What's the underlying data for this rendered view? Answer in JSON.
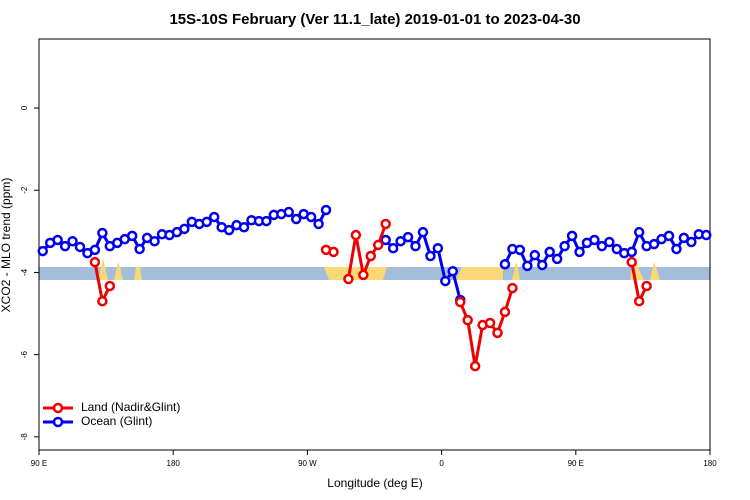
{
  "chart_data": {
    "type": "line",
    "title": "15S-10S February (Ver 11.1_late)   2019-01-01 to 2023-04-30",
    "x_label": "Longitude (deg E)",
    "y_label": "XCO2 - MLO trend (ppm)",
    "x": [
      92.5,
      97.5,
      102.5,
      107.5,
      112.5,
      117.5,
      122.5,
      127.5,
      132.5,
      137.5,
      142.5,
      147.5,
      152.5,
      157.5,
      162.5,
      167.5,
      172.5,
      177.5,
      182.5,
      187.5,
      192.5,
      197.5,
      202.5,
      207.5,
      212.5,
      217.5,
      222.5,
      227.5,
      232.5,
      237.5,
      242.5,
      247.5,
      252.5,
      257.5,
      262.5,
      267.5,
      272.5,
      277.5,
      282.5,
      287.5,
      292.5,
      297.5,
      302.5,
      307.5,
      312.5,
      317.5,
      322.5,
      327.5,
      332.5,
      337.5,
      342.5,
      347.5,
      352.5,
      357.5,
      362.5,
      367.5,
      372.5,
      377.5,
      382.5,
      387.5,
      392.5,
      397.5,
      402.5,
      407.5,
      412.5,
      417.5,
      422.5,
      427.5,
      432.5,
      437.5,
      442.5,
      447.5,
      452.5,
      457.5,
      462.5,
      467.5,
      472.5,
      477.5,
      482.5,
      487.5,
      492.5,
      497.5,
      502.5,
      507.5,
      512.5,
      517.5,
      522.5,
      527.5,
      532.5,
      537.5
    ],
    "series": [
      {
        "name": "Land (Nadir&Glint)",
        "color": "#ee0000",
        "values": [
          null,
          null,
          null,
          null,
          null,
          null,
          null,
          -3.75,
          -4.7,
          -4.33,
          null,
          null,
          null,
          null,
          null,
          null,
          null,
          null,
          null,
          null,
          null,
          null,
          null,
          null,
          null,
          null,
          null,
          null,
          null,
          null,
          null,
          null,
          null,
          null,
          null,
          null,
          null,
          null,
          -3.45,
          -3.5,
          null,
          -4.16,
          -3.09,
          -4.06,
          -3.6,
          -3.33,
          -2.82,
          null,
          null,
          null,
          null,
          null,
          null,
          null,
          null,
          null,
          -4.72,
          -5.16,
          -6.28,
          -5.28,
          -5.23,
          -5.47,
          -4.96,
          -4.38,
          null,
          null,
          null,
          null,
          null,
          null,
          null,
          null,
          null,
          null,
          null,
          null,
          null,
          null,
          null,
          -3.75,
          -4.7,
          -4.33,
          null,
          null,
          null,
          null,
          null,
          null,
          null,
          null
        ]
      },
      {
        "name": "Ocean (Glint)",
        "color": "#0000ee",
        "values": [
          -3.48,
          -3.28,
          -3.21,
          -3.36,
          -3.24,
          -3.38,
          -3.53,
          -3.45,
          -3.04,
          -3.36,
          -3.28,
          -3.19,
          -3.11,
          -3.43,
          -3.16,
          -3.24,
          -3.07,
          -3.09,
          -3.02,
          -2.94,
          -2.77,
          -2.82,
          -2.77,
          -2.65,
          -2.9,
          -2.97,
          -2.85,
          -2.9,
          -2.73,
          -2.75,
          -2.75,
          -2.6,
          -2.58,
          -2.53,
          -2.7,
          -2.58,
          -2.65,
          -2.82,
          -2.48,
          null,
          null,
          null,
          null,
          null,
          null,
          null,
          -3.21,
          -3.41,
          -3.24,
          -3.14,
          -3.36,
          -3.02,
          -3.6,
          -3.41,
          -4.21,
          -3.97,
          -4.67,
          null,
          null,
          null,
          null,
          null,
          -3.8,
          -3.43,
          -3.45,
          -3.84,
          -3.58,
          -3.82,
          -3.5,
          -3.67,
          -3.36,
          -3.11,
          -3.5,
          -3.28,
          -3.21,
          -3.36,
          -3.26,
          -3.43,
          -3.53,
          -3.5,
          -3.02,
          -3.36,
          -3.31,
          -3.19,
          -3.11,
          -3.43,
          -3.16,
          -3.26,
          -3.07,
          -3.09
        ]
      }
    ],
    "xlim": [
      90,
      540
    ],
    "xticks": [
      {
        "value": 90,
        "label": "90 E"
      },
      180,
      {
        "value": 270,
        "label": "90 W"
      },
      {
        "value": 360,
        "label": "0"
      },
      {
        "value": 450,
        "label": "90 E"
      },
      {
        "value": 540,
        "label": "180"
      }
    ],
    "ylim": [
      -8.32,
      1.68
    ],
    "yticks": [
      0,
      -2,
      -4,
      -6,
      -8
    ],
    "legend": "bottomleft"
  }
}
